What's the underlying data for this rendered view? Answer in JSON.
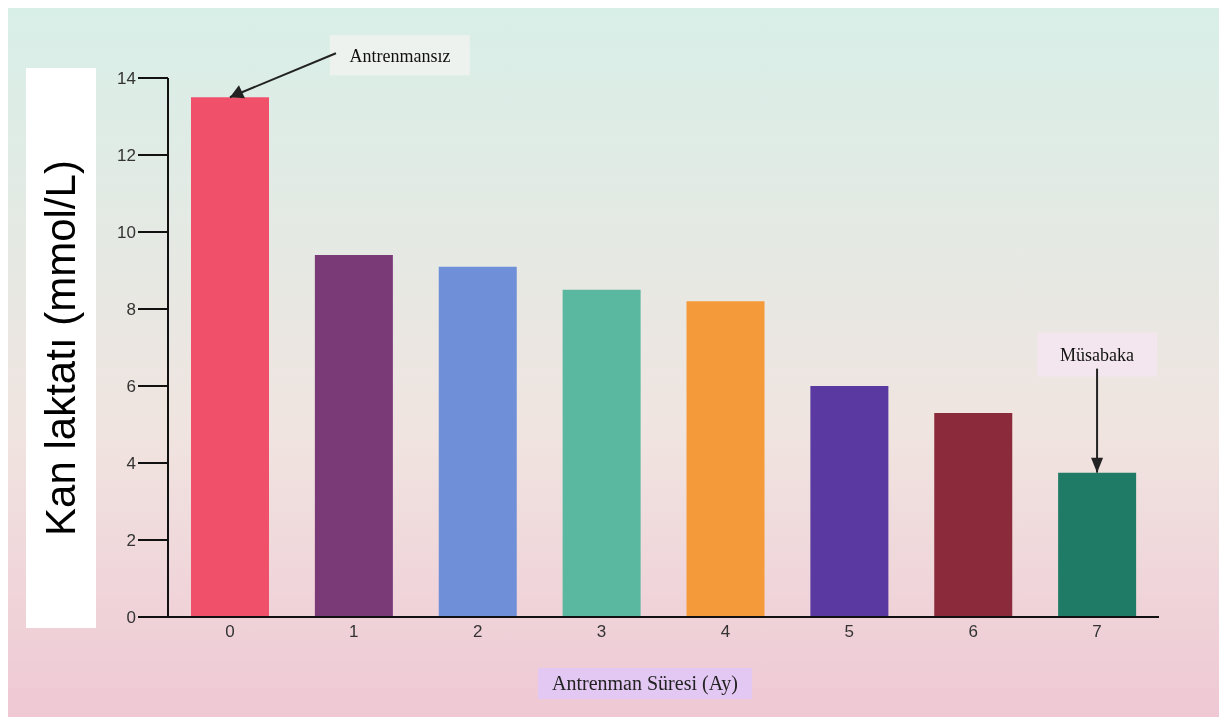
{
  "chart_data": {
    "type": "bar",
    "xlabel": "Antrenman Süresi (Ay)",
    "ylabel": "Kan laktatı (mmol/L)",
    "categories": [
      "0",
      "1",
      "2",
      "3",
      "4",
      "5",
      "6",
      "7"
    ],
    "values": [
      13.5,
      9.4,
      9.1,
      8.5,
      8.2,
      6.0,
      5.3,
      3.75
    ],
    "colors": [
      "#f0506a",
      "#7a3a78",
      "#6f8fd8",
      "#5ab8a0",
      "#f59a3a",
      "#5a3aa0",
      "#8a2a3a",
      "#1f7a66"
    ],
    "ylim": [
      0,
      14
    ],
    "yticks": [
      0,
      2,
      4,
      6,
      8,
      10,
      12,
      14
    ],
    "grid": false,
    "legend": false,
    "annotations": [
      {
        "text": "Antrenmansız",
        "x": "0",
        "y": 13.5
      },
      {
        "text": "Müsabaka",
        "x": "7",
        "y": 3.75
      }
    ]
  }
}
